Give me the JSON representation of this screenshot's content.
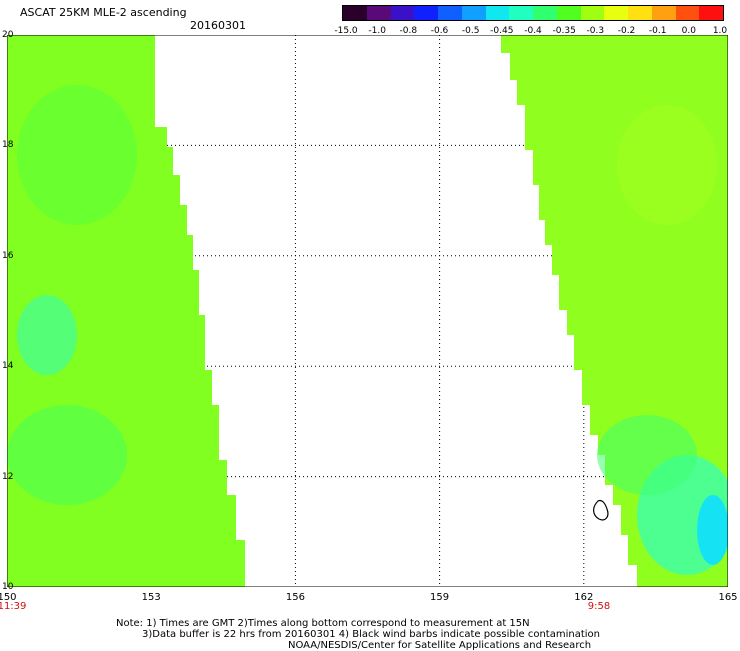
{
  "header": {
    "title": "ASCAT 25KM MLE-2 ascending",
    "date": "20160301"
  },
  "colorbar": {
    "colors": [
      "#2a002a",
      "#5a0a78",
      "#3a10c8",
      "#1020ff",
      "#1060ff",
      "#10a0ff",
      "#10e8f0",
      "#20ffc0",
      "#30ff70",
      "#50ff20",
      "#a0ff10",
      "#e8ff10",
      "#ffe010",
      "#ffa010",
      "#ff5010",
      "#ff1010"
    ],
    "ticks": [
      "-15.0",
      "-1.0",
      "-0.8",
      "-0.6",
      "-0.5",
      "-0.45",
      "-0.4",
      "-0.35",
      "-0.3",
      "-0.2",
      "-0.1",
      "0.0",
      "1.0"
    ]
  },
  "axes": {
    "lat_ticks": [
      "20",
      "18",
      "16",
      "14",
      "12",
      "10"
    ],
    "lon_ticks": [
      "150",
      "153",
      "156",
      "159",
      "162",
      "165"
    ],
    "times": [
      "11:39",
      "9:58"
    ]
  },
  "swaths": {
    "left_color": "#80ff20",
    "right_color": "#90ff20",
    "water_highlight": "#30ffc0",
    "deep_highlight": "#10e0ff"
  },
  "footer": {
    "line1": "Note: 1) Times are GMT 2)Times along bottom correspond to measurement at 15N",
    "line2": "3)Data buffer is 22 hrs from 20160301 4) Black wind barbs indicate possible contamination",
    "line3": "NOAA/NESDIS/Center for Satellite Applications and Research"
  }
}
